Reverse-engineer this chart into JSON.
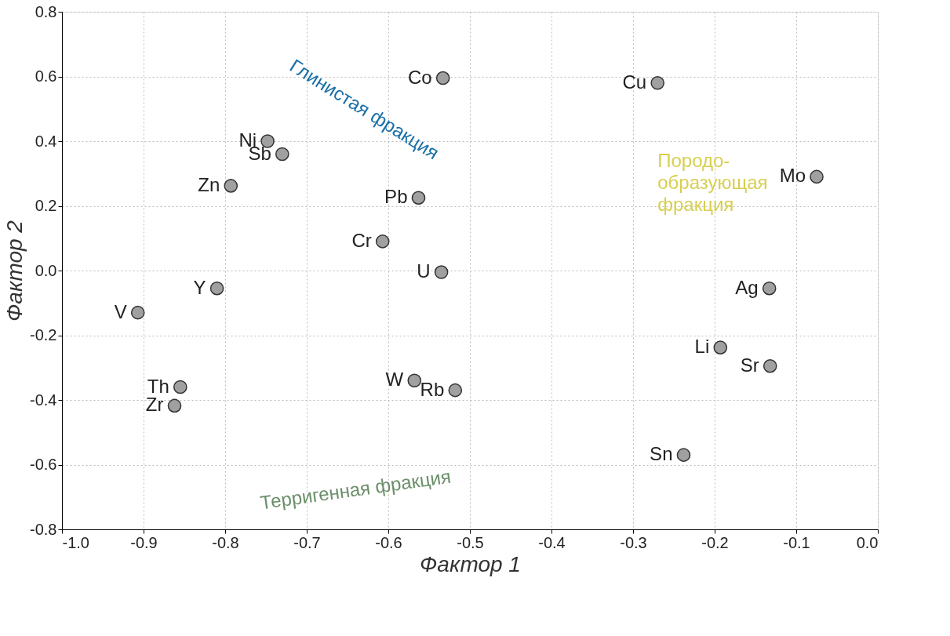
{
  "chart_data": {
    "type": "scatter",
    "xlabel": "Фактор 1",
    "ylabel": "Фактор 2",
    "x": [
      -0.533,
      -0.27,
      -0.075,
      -0.748,
      -0.73,
      -0.793,
      -0.563,
      -0.607,
      -0.535,
      -0.81,
      -0.907,
      -0.855,
      -0.862,
      -0.568,
      -0.518,
      -0.133,
      -0.193,
      -0.132,
      -0.238
    ],
    "values": [
      0.595,
      0.58,
      0.29,
      0.4,
      0.36,
      0.262,
      0.225,
      0.09,
      -0.005,
      -0.055,
      -0.13,
      -0.36,
      -0.418,
      -0.34,
      -0.37,
      -0.055,
      -0.238,
      -0.295,
      -0.57
    ],
    "color": "#a0a0a0",
    "marker": "circle",
    "grid": true,
    "xlim": [
      -1.0,
      0.0
    ],
    "ylim": [
      -0.8,
      0.8
    ],
    "xticks": [
      {
        "value": -1.0,
        "label": "-1.0"
      },
      -0.9,
      -0.8,
      -0.7,
      -0.6,
      -0.5,
      -0.4,
      -0.3,
      -0.2,
      -0.1,
      {
        "value": 0.0,
        "label": "0.0"
      }
    ],
    "yticks": [
      -0.8,
      -0.6,
      -0.4,
      -0.2,
      {
        "value": 0.0,
        "label": "0.0"
      },
      0.2,
      0.4,
      0.6,
      0.8
    ],
    "annotations": [
      {
        "text": "Co",
        "x": -0.533,
        "y": 0.595
      },
      {
        "text": "Cu",
        "x": -0.27,
        "y": 0.58
      },
      {
        "text": "Mo",
        "x": -0.075,
        "y": 0.29
      },
      {
        "text": "Ni",
        "x": -0.748,
        "y": 0.4
      },
      {
        "text": "Sb",
        "x": -0.73,
        "y": 0.36
      },
      {
        "text": "Zn",
        "x": -0.793,
        "y": 0.262
      },
      {
        "text": "Pb",
        "x": -0.563,
        "y": 0.225
      },
      {
        "text": "Cr",
        "x": -0.607,
        "y": 0.09
      },
      {
        "text": "U",
        "x": -0.535,
        "y": -0.005
      },
      {
        "text": "Y",
        "x": -0.81,
        "y": -0.055
      },
      {
        "text": "V",
        "x": -0.907,
        "y": -0.13
      },
      {
        "text": "Th",
        "x": -0.855,
        "y": -0.36
      },
      {
        "text": "Zr",
        "x": -0.862,
        "y": -0.418
      },
      {
        "text": "W",
        "x": -0.568,
        "y": -0.34
      },
      {
        "text": "Rb",
        "x": -0.518,
        "y": -0.37
      },
      {
        "text": "Ag",
        "x": -0.133,
        "y": -0.055
      },
      {
        "text": "Li",
        "x": -0.193,
        "y": -0.238
      },
      {
        "text": "Sr",
        "x": -0.132,
        "y": -0.295
      },
      {
        "text": "Sn",
        "x": -0.238,
        "y": -0.57
      },
      "Глинистая фракция",
      "Терригенная фракция",
      "Породо-образующая фракция"
    ]
  }
}
